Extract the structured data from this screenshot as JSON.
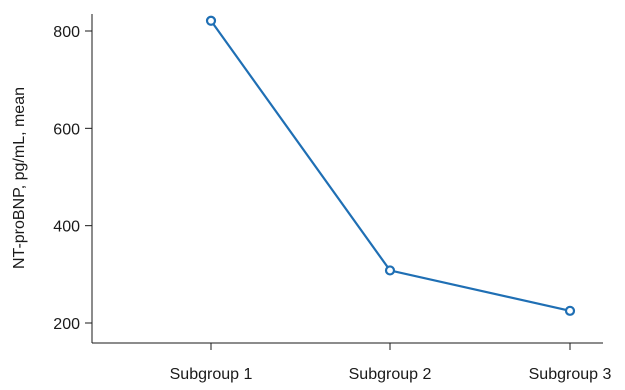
{
  "chart_data": {
    "type": "line",
    "categories": [
      "Subgroup 1",
      "Subgroup 2",
      "Subgroup 3"
    ],
    "series": [
      {
        "values": [
          821,
          308,
          225
        ]
      }
    ],
    "ylabel": "NT-proBNP, pg/mL, mean",
    "xlabel": "",
    "title": "",
    "ylim": [
      200,
      800
    ],
    "yticks": [
      200,
      400,
      600,
      800
    ],
    "grid": false,
    "legend": "none",
    "line_color": "#1f6fb4",
    "marker": "open-circle"
  }
}
